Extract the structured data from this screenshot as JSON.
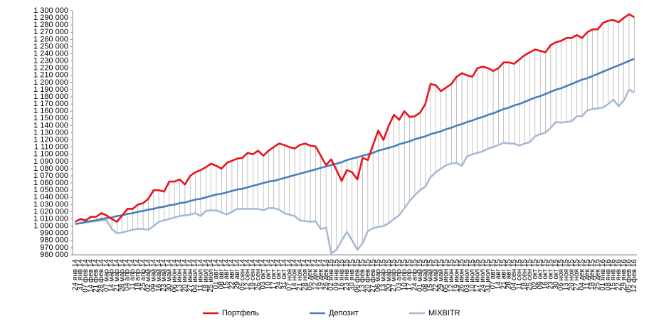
{
  "chart_data": {
    "type": "line",
    "categories": [
      "24 янв 14",
      "31 янв 14",
      "07 фев 14",
      "14 фев 14",
      "21 фев 14",
      "28 фев 14",
      "07 мар 14",
      "14 мар 14",
      "21 мар 14",
      "28 мар 14",
      "04 апр 14",
      "11 апр 14",
      "18 апр 14",
      "25 апр 14",
      "02 май 14",
      "09 май 14",
      "16 май 14",
      "23 май 14",
      "30 май 14",
      "06 июн 14",
      "13 июн 14",
      "20 июн 14",
      "27 июн 14",
      "04 июл 14",
      "11 июл 14",
      "18 июл 14",
      "25 июл 14",
      "01 авг 14",
      "08 авг 14",
      "15 авг 14",
      "22 авг 14",
      "29 авг 14",
      "05 сен 14",
      "12 сен 14",
      "19 сен 14",
      "26 сен 14",
      "03 окт 14",
      "10 окт 14",
      "17 окт 14",
      "24 окт 14",
      "31 окт 14",
      "07 ноя 14",
      "14 ноя 14",
      "21 ноя 14",
      "28 ноя 14",
      "05 дек 14",
      "12 дек 14",
      "19 дек 14",
      "26 дек 14",
      "02 янв 15",
      "09 янв 15",
      "16 янв 15",
      "23 янв 15",
      "30 янв 15",
      "06 фев 15",
      "13 фев 15",
      "20 фев 15",
      "27 фев 15",
      "06 мар 15",
      "13 мар 15",
      "20 мар 15",
      "27 мар 15",
      "03 апр 15",
      "10 апр 15",
      "17 апр 15",
      "24 апр 15",
      "01 май 15",
      "08 май 15",
      "15 май 15",
      "22 май 15",
      "29 май 15",
      "05 июн 15",
      "12 июн 15",
      "19 июн 15",
      "26 июн 15",
      "03 июл 15",
      "10 июл 15",
      "17 июл 15",
      "24 июл 15",
      "31 июл 15",
      "07 авг 15",
      "14 авг 15",
      "21 авг 15",
      "28 авг 15",
      "04 сен 15",
      "11 сен 15",
      "18 сен 15",
      "25 сен 15",
      "02 окт 15",
      "09 окт 15",
      "16 окт 15",
      "23 окт 15",
      "30 окт 15",
      "06 ноя 15",
      "13 ноя 15",
      "20 ноя 15",
      "27 ноя 15",
      "04 дек 15",
      "11 дек 15",
      "18 дек 15",
      "25 дек 15",
      "01 янв 16",
      "08 янв 16",
      "15 янв 16",
      "22 янв 16",
      "29 янв 16",
      "05 фев 16",
      "12 фев 16"
    ],
    "series": [
      {
        "name": "Портфель",
        "color": "#e8141c",
        "values": [
          1006000,
          1010000,
          1008000,
          1013000,
          1013000,
          1018000,
          1015000,
          1010000,
          1006000,
          1015000,
          1024000,
          1024000,
          1030000,
          1032000,
          1038000,
          1050000,
          1050000,
          1048000,
          1062000,
          1062000,
          1065000,
          1058000,
          1070000,
          1075000,
          1078000,
          1082000,
          1087000,
          1084000,
          1080000,
          1088000,
          1091000,
          1094000,
          1095000,
          1102000,
          1100000,
          1105000,
          1098000,
          1105000,
          1110000,
          1115000,
          1113000,
          1110000,
          1108000,
          1113000,
          1115000,
          1112000,
          1111000,
          1098000,
          1085000,
          1093000,
          1078000,
          1063000,
          1078000,
          1075000,
          1065000,
          1095000,
          1092000,
          1113000,
          1133000,
          1120000,
          1140000,
          1155000,
          1148000,
          1160000,
          1152000,
          1153000,
          1158000,
          1170000,
          1198000,
          1196000,
          1188000,
          1193000,
          1198000,
          1208000,
          1213000,
          1210000,
          1208000,
          1220000,
          1222000,
          1220000,
          1216000,
          1220000,
          1228000,
          1228000,
          1226000,
          1232000,
          1238000,
          1242000,
          1246000,
          1244000,
          1242000,
          1252000,
          1256000,
          1258000,
          1262000,
          1262000,
          1266000,
          1262000,
          1270000,
          1274000,
          1274000,
          1283000,
          1286000,
          1287000,
          1284000,
          1290000,
          1295000,
          1291000
        ]
      },
      {
        "name": "Депозит",
        "color": "#4a7ebb",
        "values": [
          1003000,
          1004000,
          1006000,
          1007000,
          1008000,
          1010000,
          1011000,
          1012000,
          1014000,
          1015000,
          1017000,
          1018000,
          1020000,
          1021000,
          1023000,
          1024000,
          1026000,
          1027000,
          1029000,
          1030000,
          1032000,
          1033000,
          1035000,
          1037000,
          1038000,
          1040000,
          1042000,
          1044000,
          1045000,
          1047000,
          1049000,
          1051000,
          1052000,
          1054000,
          1056000,
          1058000,
          1060000,
          1062000,
          1063000,
          1065000,
          1067000,
          1069000,
          1071000,
          1073000,
          1075000,
          1077000,
          1079000,
          1081000,
          1083000,
          1085000,
          1087000,
          1089000,
          1092000,
          1094000,
          1096000,
          1098000,
          1100000,
          1102000,
          1105000,
          1107000,
          1109000,
          1111000,
          1114000,
          1116000,
          1118000,
          1121000,
          1123000,
          1125000,
          1128000,
          1130000,
          1132000,
          1135000,
          1137000,
          1140000,
          1142000,
          1145000,
          1147000,
          1150000,
          1152000,
          1155000,
          1157000,
          1160000,
          1163000,
          1165000,
          1168000,
          1170000,
          1173000,
          1176000,
          1179000,
          1181000,
          1184000,
          1187000,
          1190000,
          1192000,
          1195000,
          1198000,
          1201000,
          1204000,
          1206000,
          1209000,
          1212000,
          1215000,
          1218000,
          1221000,
          1224000,
          1227000,
          1230000,
          1233000
        ]
      },
      {
        "name": "MIXBITR",
        "color": "#a5b8d6",
        "values": [
          1003000,
          1004000,
          1005000,
          1006000,
          1007000,
          1008000,
          1008000,
          996000,
          990000,
          991000,
          993000,
          995000,
          996000,
          996000,
          995000,
          1000000,
          1006000,
          1008000,
          1010000,
          1012000,
          1014000,
          1015000,
          1016000,
          1018000,
          1014000,
          1021000,
          1022000,
          1022000,
          1019000,
          1016000,
          1020000,
          1024000,
          1024000,
          1024000,
          1024000,
          1024000,
          1022000,
          1025000,
          1025000,
          1023000,
          1018000,
          1016000,
          1014000,
          1008000,
          1007000,
          1006000,
          1007000,
          996000,
          998000,
          962000,
          967000,
          980000,
          992000,
          980000,
          967000,
          976000,
          993000,
          997000,
          999000,
          1000000,
          1004000,
          1010000,
          1015000,
          1025000,
          1035000,
          1043000,
          1050000,
          1055000,
          1068000,
          1075000,
          1080000,
          1085000,
          1087000,
          1088000,
          1084000,
          1097000,
          1100000,
          1102000,
          1104000,
          1108000,
          1110000,
          1113000,
          1116000,
          1115000,
          1115000,
          1112000,
          1115000,
          1117000,
          1125000,
          1128000,
          1130000,
          1137000,
          1145000,
          1144000,
          1145000,
          1146000,
          1153000,
          1153000,
          1161000,
          1163000,
          1164000,
          1165000,
          1170000,
          1176000,
          1167000,
          1175000,
          1190000,
          1186000
        ]
      }
    ],
    "ylim": [
      960000,
      1300000
    ],
    "yticks": [
      {
        "value": 960000,
        "label": "960 000"
      },
      {
        "value": 970000,
        "label": "970 000"
      },
      {
        "value": 980000,
        "label": "980 000"
      },
      {
        "value": 990000,
        "label": "990 000"
      },
      {
        "value": 1000000,
        "label": "1 000 000"
      },
      {
        "value": 1010000,
        "label": "1 010 000"
      },
      {
        "value": 1020000,
        "label": "1 020 000"
      },
      {
        "value": 1030000,
        "label": "1 030 000"
      },
      {
        "value": 1040000,
        "label": "1 040 000"
      },
      {
        "value": 1050000,
        "label": "1 050 000"
      },
      {
        "value": 1060000,
        "label": "1 060 000"
      },
      {
        "value": 1070000,
        "label": "1 070 000"
      },
      {
        "value": 1080000,
        "label": "1 080 000"
      },
      {
        "value": 1090000,
        "label": "1 090 000"
      },
      {
        "value": 1100000,
        "label": "1 100 000"
      },
      {
        "value": 1110000,
        "label": "1 110 000"
      },
      {
        "value": 1120000,
        "label": "1 120 000"
      },
      {
        "value": 1130000,
        "label": "1 130 000"
      },
      {
        "value": 1140000,
        "label": "1 140 000"
      },
      {
        "value": 1150000,
        "label": "1 150 000"
      },
      {
        "value": 1160000,
        "label": "1 160 000"
      },
      {
        "value": 1170000,
        "label": "1 170 000"
      },
      {
        "value": 1180000,
        "label": "1 180 000"
      },
      {
        "value": 1190000,
        "label": "1 190 000"
      },
      {
        "value": 1200000,
        "label": "1 200 000"
      },
      {
        "value": 1210000,
        "label": "1 210 000"
      },
      {
        "value": 1220000,
        "label": "1 220 000"
      },
      {
        "value": 1230000,
        "label": "1 230 000"
      },
      {
        "value": 1240000,
        "label": "1 240 000"
      },
      {
        "value": 1250000,
        "label": "1 250 000"
      },
      {
        "value": 1260000,
        "label": "1 260 000"
      },
      {
        "value": 1270000,
        "label": "1 270 000"
      },
      {
        "value": 1280000,
        "label": "1 280 000"
      },
      {
        "value": 1290000,
        "label": "1 290 000"
      },
      {
        "value": 1300000,
        "label": "1 300 000"
      }
    ],
    "high_low_lines": true,
    "legend": "bottom"
  }
}
